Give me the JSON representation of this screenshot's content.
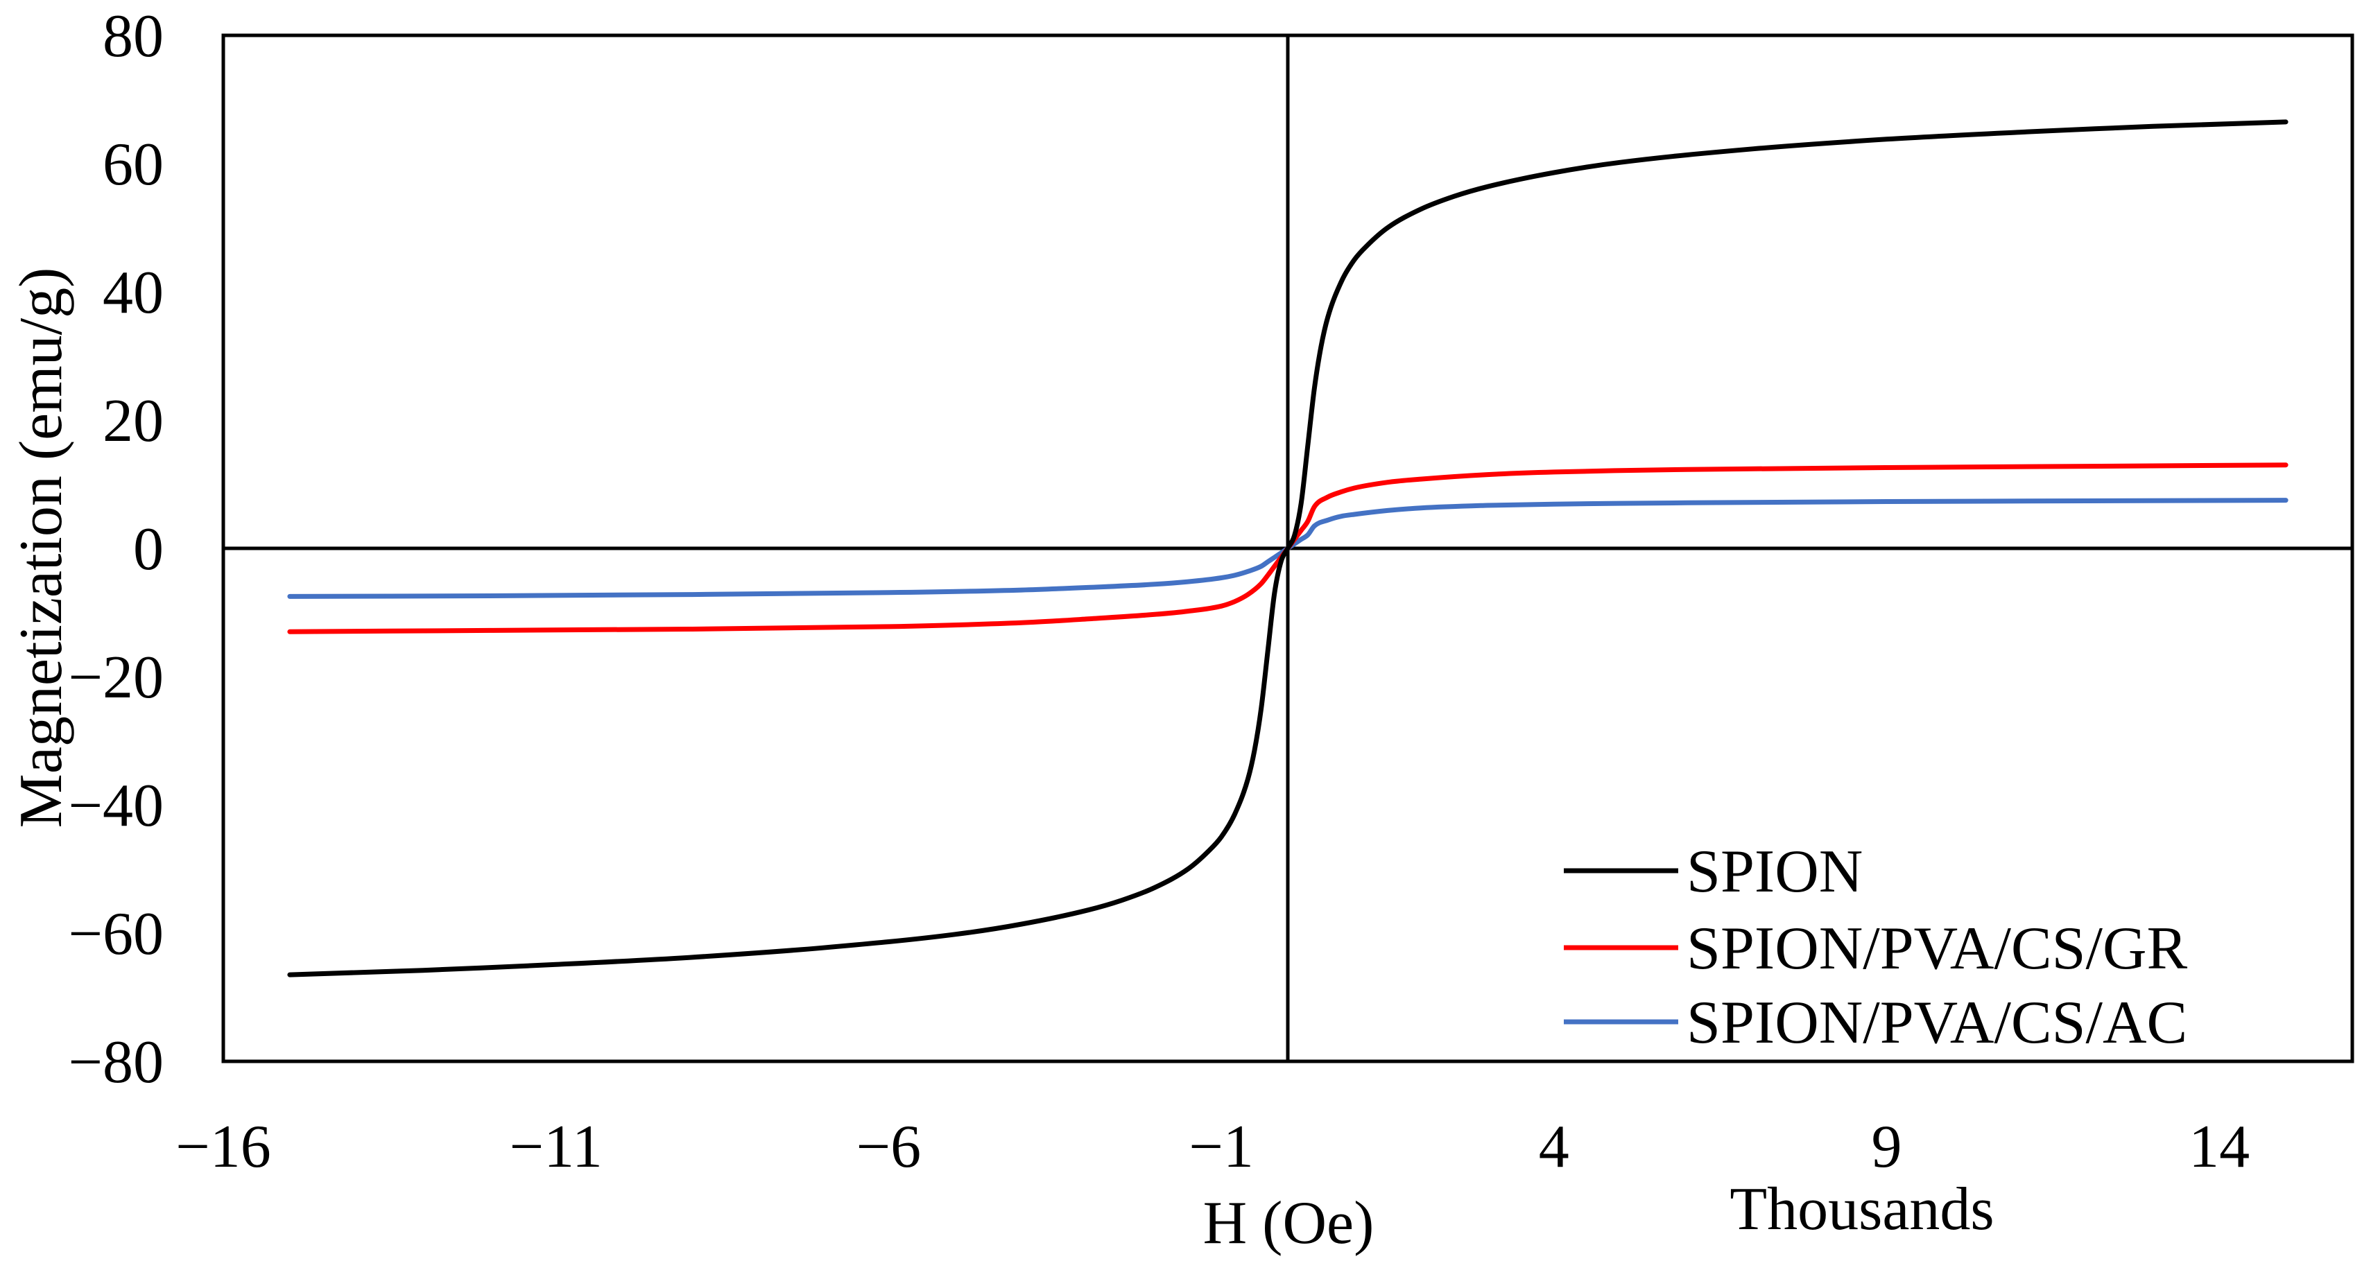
{
  "chart_data": {
    "type": "line",
    "title": "",
    "xlabel": "H (Oe)",
    "ylabel": "Magnetization (emu/g)",
    "x_units_label": "Thousands",
    "xlim": [
      -16,
      16
    ],
    "ylim": [
      -80,
      80
    ],
    "xticks": [
      -16,
      -11,
      -6,
      -1,
      4,
      9,
      14
    ],
    "xtick_labels": [
      "−16",
      "−11",
      "−6",
      "−1",
      "4",
      "9",
      "14"
    ],
    "yticks": [
      80,
      60,
      40,
      20,
      0,
      -20,
      -40,
      -60,
      -80
    ],
    "ytick_labels": [
      "80",
      "60",
      "40",
      "20",
      "0",
      "−20",
      "−40",
      "−60",
      "−80"
    ],
    "grid": false,
    "legend_position": "bottom-right",
    "series": [
      {
        "name": "SPION",
        "color": "#000000",
        "x": [
          -15,
          -13,
          -11,
          -9,
          -7,
          -5,
          -4,
          -3,
          -2.5,
          -2,
          -1.5,
          -1.2,
          -1,
          -0.8,
          -0.6,
          -0.5,
          -0.4,
          -0.3,
          -0.2,
          -0.1,
          0,
          0.1,
          0.2,
          0.3,
          0.4,
          0.5,
          0.6,
          0.8,
          1,
          1.2,
          1.5,
          2,
          2.5,
          3,
          4,
          5,
          7,
          9,
          11,
          13,
          15
        ],
        "y": [
          -66.5,
          -65.8,
          -64.9,
          -63.8,
          -62.3,
          -60.2,
          -58.6,
          -56.4,
          -54.9,
          -52.9,
          -50.0,
          -47.3,
          -45.0,
          -41.5,
          -36.0,
          -31.5,
          -25.0,
          -16.0,
          -7.0,
          -2.0,
          0,
          2.0,
          7.0,
          16.0,
          25.0,
          31.5,
          36.0,
          41.5,
          45.0,
          47.3,
          50.0,
          52.9,
          54.9,
          56.4,
          58.6,
          60.2,
          62.3,
          63.8,
          64.9,
          65.8,
          66.5
        ]
      },
      {
        "name": "SPION/PVA/CS/GR",
        "color": "#ff0000",
        "x": [
          -15,
          -12,
          -9,
          -6,
          -4,
          -3,
          -2,
          -1.5,
          -1,
          -0.8,
          -0.6,
          -0.4,
          -0.3,
          -0.2,
          -0.1,
          0,
          0.1,
          0.2,
          0.3,
          0.4,
          0.6,
          0.8,
          1,
          1.5,
          2,
          3,
          4,
          6,
          9,
          12,
          15
        ],
        "y": [
          -13.0,
          -12.8,
          -12.6,
          -12.2,
          -11.6,
          -11.0,
          -10.3,
          -9.8,
          -9.0,
          -8.3,
          -7.2,
          -5.5,
          -4.2,
          -2.8,
          -1.4,
          0,
          1.4,
          2.8,
          4.2,
          6.5,
          8.0,
          8.8,
          9.4,
          10.3,
          10.8,
          11.5,
          11.9,
          12.3,
          12.6,
          12.8,
          13.0
        ]
      },
      {
        "name": "SPION/PVA/CS/AC",
        "color": "#4472c4",
        "x": [
          -15,
          -12,
          -9,
          -6,
          -4,
          -3,
          -2,
          -1.5,
          -1,
          -0.8,
          -0.6,
          -0.4,
          -0.3,
          -0.2,
          -0.1,
          0,
          0.1,
          0.2,
          0.3,
          0.4,
          0.6,
          0.8,
          1,
          1.5,
          2,
          3,
          4,
          6,
          9,
          12,
          15
        ],
        "y": [
          -7.5,
          -7.4,
          -7.2,
          -6.9,
          -6.5,
          -6.1,
          -5.6,
          -5.2,
          -4.6,
          -4.2,
          -3.6,
          -2.8,
          -2.1,
          -1.4,
          -0.7,
          0,
          0.7,
          1.4,
          2.1,
          3.5,
          4.4,
          5.0,
          5.3,
          5.9,
          6.3,
          6.7,
          6.9,
          7.1,
          7.3,
          7.4,
          7.5
        ]
      }
    ]
  }
}
